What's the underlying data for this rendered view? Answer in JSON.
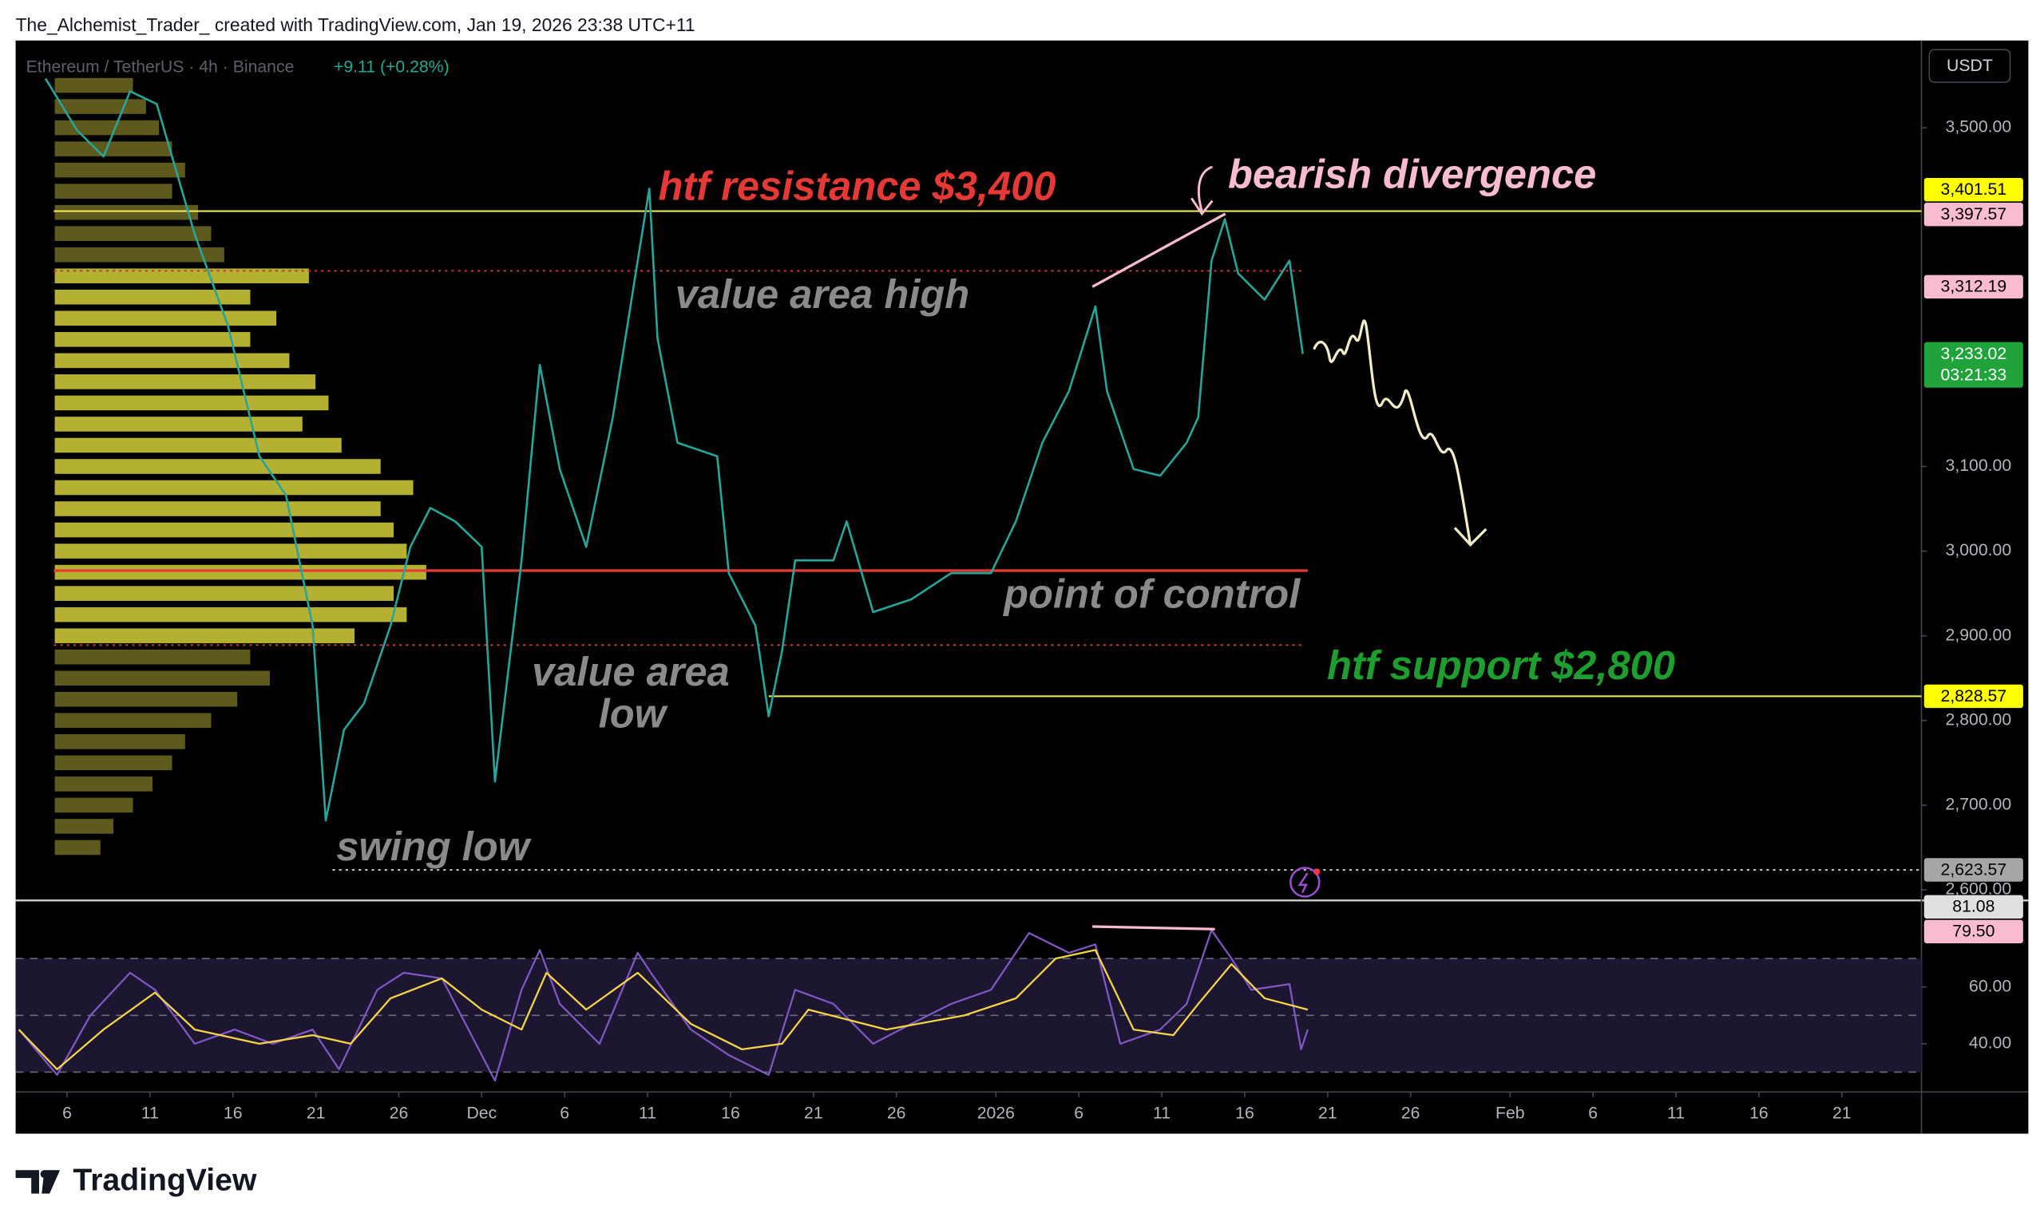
{
  "header": {
    "text": "The_Alchemist_Trader_ created with TradingView.com, Jan 19, 2026 23:38 UTC+11"
  },
  "footer": {
    "brand": "TradingView"
  },
  "chart_data": [
    {
      "type": "line",
      "title": "Ethereum / TetherUS · 4h · Binance",
      "change": "+9.11 (+0.28%)",
      "currency": "USDT",
      "xlim": [
        1.9,
        116.8
      ],
      "ylim": [
        2589,
        3603
      ],
      "grid": false,
      "yticks": [
        {
          "value": 3500,
          "label": "3,500.00"
        },
        {
          "value": 3100,
          "label": "3,100.00"
        },
        {
          "value": 3000,
          "label": "3,000.00"
        },
        {
          "value": 2900,
          "label": "2,900.00"
        },
        {
          "value": 2800,
          "label": "2,800.00"
        },
        {
          "value": 2700,
          "label": "2,700.00"
        },
        {
          "value": 2600,
          "label": "2,600.00"
        }
      ],
      "series": [
        {
          "color": "#26a69a",
          "x": [
            3.7,
            5.6,
            7.2,
            8.8,
            10.4,
            12.7,
            14.7,
            16.6,
            18.2,
            19.8,
            20.6,
            21.7,
            22.9,
            24.5,
            25.7,
            26.9,
            28.4,
            30.0,
            30.8,
            32.4,
            33.5,
            34.7,
            36.3,
            37.9,
            39.4,
            40.1,
            40.6,
            41.8,
            44.2,
            44.9,
            46.5,
            47.3,
            48.1,
            48.9,
            51.2,
            52.0,
            53.6,
            55.9,
            58.3,
            60.7,
            62.2,
            63.8,
            65.4,
            67.0,
            67.7,
            69.3,
            70.9,
            72.5,
            73.2,
            74.0,
            74.8,
            75.6,
            77.2,
            78.7,
            79.5
          ],
          "values": [
            3558,
            3497,
            3466,
            3543,
            3528,
            3374,
            3266,
            3112,
            3066,
            2912,
            2682,
            2789,
            2820,
            2912,
            3005,
            3051,
            3035,
            3005,
            2728,
            2989,
            3220,
            3097,
            3005,
            3158,
            3343,
            3428,
            3251,
            3128,
            3112,
            2974,
            2912,
            2805,
            2882,
            2989,
            2989,
            3035,
            2928,
            2943,
            2974,
            2974,
            3035,
            3128,
            3189,
            3289,
            3189,
            3097,
            3089,
            3128,
            3158,
            3343,
            3392,
            3328,
            3297,
            3343,
            3233
          ]
        }
      ],
      "profile": {
        "highlight_range": [
          2889,
          3331
        ],
        "color": "#d4cf3a",
        "outer_color": "#6e6a22",
        "prices": [
          3550,
          3525,
          3500,
          3475,
          3450,
          3425,
          3400,
          3375,
          3350,
          3325,
          3300,
          3275,
          3250,
          3225,
          3200,
          3175,
          3150,
          3125,
          3100,
          3075,
          3050,
          3025,
          3000,
          2975,
          2950,
          2925,
          2900,
          2875,
          2850,
          2825,
          2800,
          2775,
          2750,
          2725,
          2700,
          2675,
          2650
        ],
        "volumes": [
          60,
          70,
          80,
          90,
          100,
          90,
          110,
          120,
          130,
          195,
          150,
          170,
          150,
          180,
          200,
          210,
          190,
          220,
          250,
          275,
          250,
          260,
          270,
          285,
          260,
          270,
          230,
          150,
          165,
          140,
          120,
          100,
          90,
          75,
          60,
          45,
          35
        ]
      },
      "levels": [
        {
          "value": 3401.51,
          "color": "#e8e85a",
          "style": "solid",
          "from": 4.2
        },
        {
          "value": 3331,
          "color": "#b83a3a",
          "style": "dotted",
          "from": 4.2,
          "to": 79.5
        },
        {
          "value": 2977,
          "color": "#e53935",
          "style": "solid",
          "from": 4.2,
          "to": 79.8
        },
        {
          "value": 2889,
          "color": "#b83a3a",
          "style": "dotted",
          "from": 4.2,
          "to": 79.5
        },
        {
          "value": 2828.57,
          "color": "#e8e85a",
          "style": "solid",
          "from": 47.3
        },
        {
          "value": 2623.57,
          "color": "#bdbdbd",
          "style": "dotted",
          "from": 21.0
        }
      ],
      "price_labels": [
        {
          "value": 3401.51,
          "label": "3,401.51",
          "color": "#ffff00",
          "text_color": "#000000"
        },
        {
          "value": 3397.57,
          "label": "3,397.57",
          "color": "#f8bbd0",
          "text_color": "#000000"
        },
        {
          "value": 3312.19,
          "label": "3,312.19",
          "color": "#f8bbd0",
          "text_color": "#000000"
        },
        {
          "value": 3233.02,
          "label": "3,233.02",
          "sub": "03:21:33",
          "color": "#1fa33a",
          "text_color": "#ffffff"
        },
        {
          "value": 2828.57,
          "label": "2,828.57",
          "color": "#ffff00",
          "text_color": "#000000"
        },
        {
          "value": 2623.57,
          "label": "2,623.57",
          "color": "#a6a6a6",
          "text_color": "#000000"
        }
      ],
      "annotations": [
        {
          "text": "htf resistance $3,400",
          "color": "#e53935"
        },
        {
          "text": "bearish divergence",
          "color": "#f8bbd0"
        },
        {
          "text": "value area high",
          "color": "#8a8a8a"
        },
        {
          "text": "point of control",
          "color": "#8a8a8a"
        },
        {
          "text": [
            "value area",
            "low"
          ],
          "color": "#8a8a8a"
        },
        {
          "text": "htf support $2,800",
          "color": "#1e9e2e"
        },
        {
          "text": "swing low",
          "color": "#8a8a8a"
        }
      ]
    },
    {
      "type": "line",
      "xlim": [
        1.9,
        116.8
      ],
      "ylim": [
        23,
        90
      ],
      "yticks": [
        {
          "value": 60,
          "label": "60.00"
        },
        {
          "value": 40,
          "label": "40.00"
        }
      ],
      "levels": [
        70,
        50,
        30
      ],
      "band_color": "#1d1630",
      "xticks": [
        {
          "value": 5,
          "label": "6"
        },
        {
          "value": 10,
          "label": "11"
        },
        {
          "value": 15,
          "label": "16"
        },
        {
          "value": 20,
          "label": "21"
        },
        {
          "value": 25,
          "label": "26"
        },
        {
          "value": 30,
          "label": "Dec"
        },
        {
          "value": 35,
          "label": "6"
        },
        {
          "value": 40,
          "label": "11"
        },
        {
          "value": 45,
          "label": "16"
        },
        {
          "value": 50,
          "label": "21"
        },
        {
          "value": 55,
          "label": "26"
        },
        {
          "value": 61,
          "label": "2026"
        },
        {
          "value": 66,
          "label": "6"
        },
        {
          "value": 71,
          "label": "11"
        },
        {
          "value": 76,
          "label": "16"
        },
        {
          "value": 81,
          "label": "21"
        },
        {
          "value": 86,
          "label": "26"
        },
        {
          "value": 92,
          "label": "Feb"
        },
        {
          "value": 97,
          "label": "6"
        },
        {
          "value": 102,
          "label": "11"
        },
        {
          "value": 107,
          "label": "16"
        },
        {
          "value": 112,
          "label": "21"
        }
      ],
      "series": [
        {
          "color": "#7e57c2",
          "x": [
            2.1,
            4.4,
            6.4,
            8.8,
            10.3,
            12.7,
            15.1,
            17.4,
            19.8,
            21.4,
            23.7,
            25.3,
            27.6,
            29.2,
            30.8,
            32.4,
            33.5,
            34.7,
            37.1,
            39.4,
            40.2,
            42.6,
            44.9,
            47.3,
            48.9,
            51.2,
            53.6,
            55.9,
            58.3,
            60.7,
            63.0,
            65.4,
            67.0,
            68.5,
            70.9,
            72.5,
            74.0,
            75.2,
            76.4,
            78.7,
            79.4,
            79.8
          ],
          "values": [
            45,
            29,
            50,
            65,
            59,
            40,
            45,
            40,
            45,
            31,
            59,
            65,
            63,
            45,
            27,
            59,
            73,
            54,
            40,
            72,
            65,
            45,
            36,
            29,
            59,
            54,
            40,
            47,
            54,
            59,
            79,
            72,
            75,
            40,
            45,
            54,
            80,
            70,
            59,
            61,
            38,
            45
          ]
        },
        {
          "color": "#f5d547",
          "x": [
            2.1,
            4.4,
            7.2,
            10.3,
            12.7,
            16.6,
            19.8,
            22.1,
            24.5,
            27.6,
            30.0,
            32.4,
            33.9,
            36.3,
            39.4,
            42.6,
            45.7,
            48.1,
            49.7,
            54.4,
            59.1,
            62.2,
            64.6,
            67.0,
            69.3,
            71.7,
            73.2,
            75.2,
            77.2,
            79.8
          ],
          "values": [
            45,
            31,
            45,
            58,
            45,
            40,
            43,
            40,
            56,
            63,
            52,
            45,
            65,
            52,
            65,
            47,
            38,
            40,
            52,
            45,
            50,
            56,
            70,
            73,
            45,
            43,
            54,
            68,
            56,
            52
          ]
        }
      ],
      "price_labels": [
        {
          "value": 81.08,
          "label": "81.08",
          "color": "#e0e0e0",
          "text_color": "#000000"
        },
        {
          "value": 79.5,
          "label": "79.50",
          "color": "#f8bbd0",
          "text_color": "#000000"
        }
      ]
    }
  ]
}
